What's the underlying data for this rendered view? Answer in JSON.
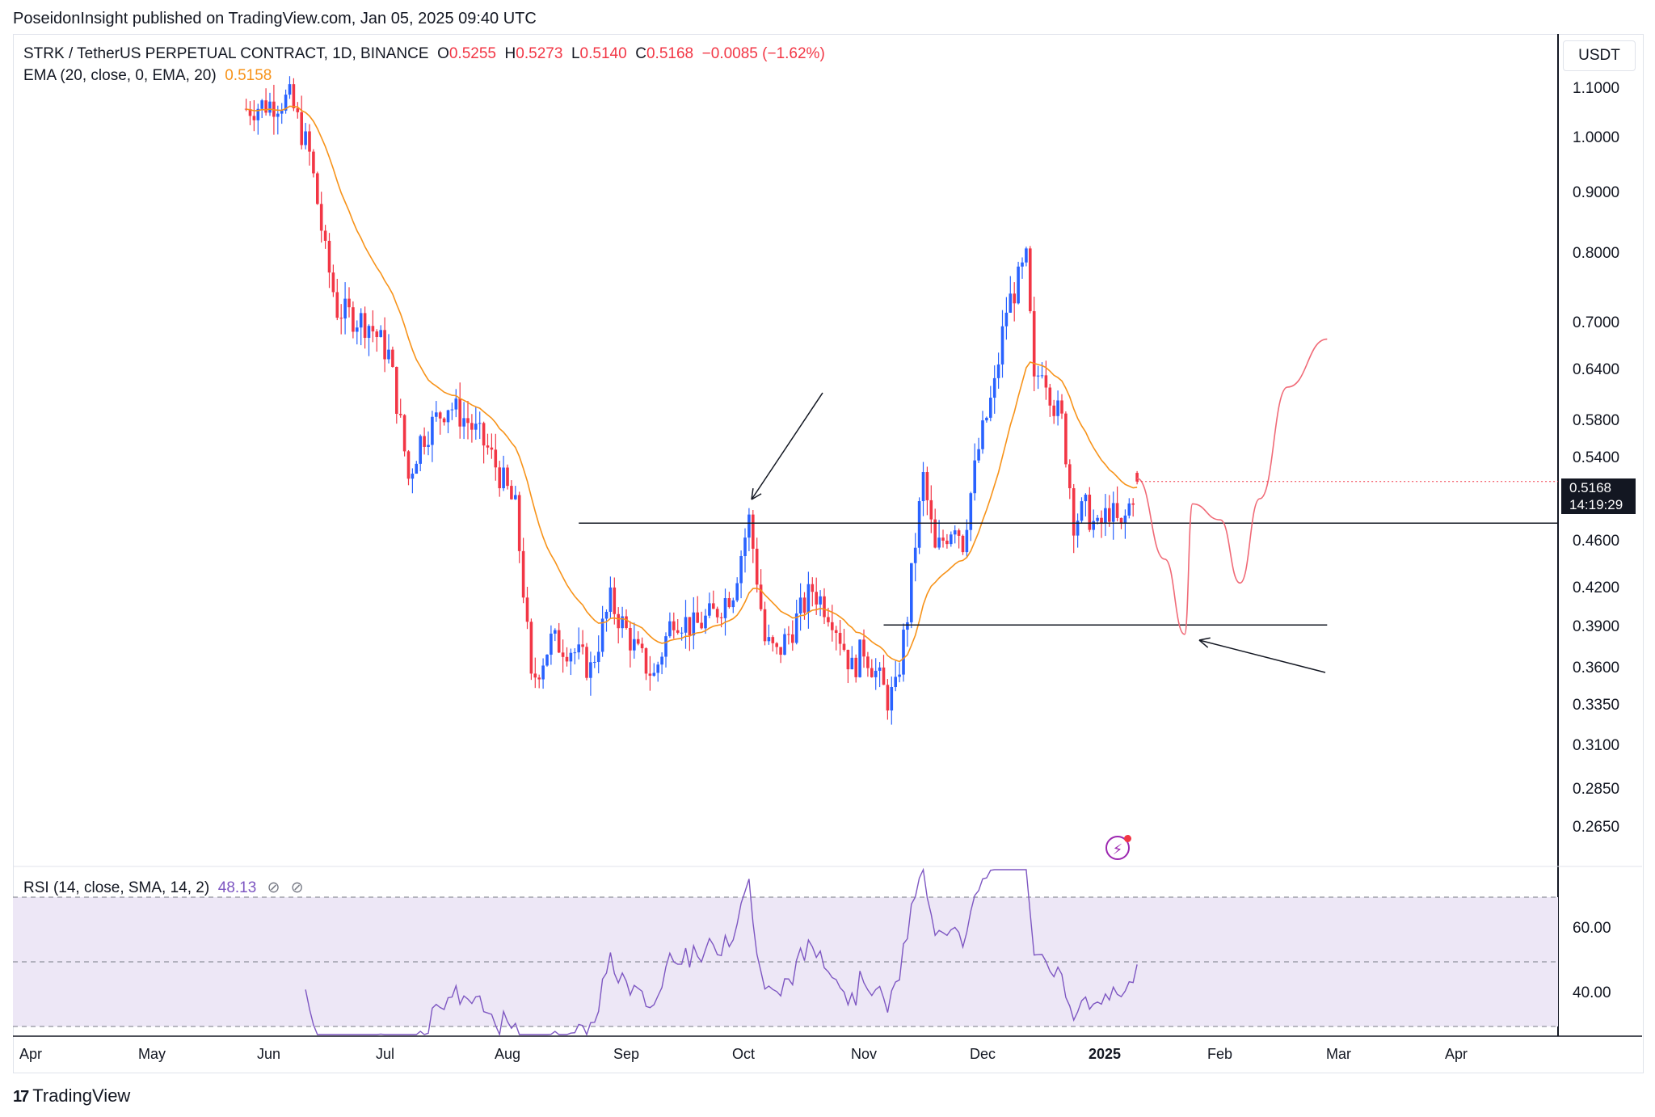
{
  "header": {
    "published": "PoseidonInsight published on TradingView.com, Jan 05, 2025 09:40 UTC"
  },
  "legend": {
    "symbol": "STRK / TetherUS PERPETUAL CONTRACT, 1D, BINANCE",
    "o_label": "O",
    "o_value": "0.5255",
    "h_label": "H",
    "h_value": "0.5273",
    "l_label": "L",
    "l_value": "0.5140",
    "c_label": "C",
    "c_value": "0.5168",
    "change": "−0.0085 (−1.62%)",
    "ema_label": "EMA (20, close, 0, EMA, 20)",
    "ema_value": "0.5158",
    "rsi_label": "RSI (14, close, SMA, 14, 2)",
    "rsi_value": "48.13",
    "hide_icon": "eye-off-icon"
  },
  "price_scale": {
    "currency": "USDT",
    "ticks": [
      "1.1000",
      "1.0000",
      "0.9000",
      "0.8000",
      "0.7000",
      "0.6400",
      "0.5800",
      "0.5400",
      "0.4600",
      "0.4200",
      "0.3900",
      "0.3600",
      "0.3350",
      "0.3100",
      "0.2850",
      "0.2650"
    ],
    "last_price": "0.5168",
    "countdown": "14:19:29"
  },
  "rsi_scale": {
    "ticks": [
      "60.00",
      "40.00"
    ]
  },
  "time_scale": {
    "ticks": [
      {
        "label": "Apr",
        "bold": false
      },
      {
        "label": "May",
        "bold": false
      },
      {
        "label": "Jun",
        "bold": false
      },
      {
        "label": "Jul",
        "bold": false
      },
      {
        "label": "Aug",
        "bold": false
      },
      {
        "label": "Sep",
        "bold": false
      },
      {
        "label": "Oct",
        "bold": false
      },
      {
        "label": "Nov",
        "bold": false
      },
      {
        "label": "Dec",
        "bold": false
      },
      {
        "label": "2025",
        "bold": true
      },
      {
        "label": "Feb",
        "bold": false
      },
      {
        "label": "Mar",
        "bold": false
      },
      {
        "label": "Apr",
        "bold": false
      }
    ]
  },
  "footer": {
    "brand": "TradingView",
    "logo_icon": "tradingview-logo-icon"
  },
  "colors": {
    "up": "#2962ff",
    "down": "#f23645",
    "ema": "#f7931a",
    "rsi": "#7e57c2",
    "rsi_band": "#ede7f6",
    "projection": "#f06a77",
    "drawing": "#131722"
  },
  "chart_data": {
    "type": "candlestick",
    "symbol": "STRK/USDT perpetual",
    "timeframe": "1D",
    "scale": "log",
    "anchors": [
      {
        "date": "2024-05-25",
        "close": 1.06
      },
      {
        "date": "2024-06-05",
        "close": 1.08
      },
      {
        "date": "2024-06-10",
        "close": 0.97
      },
      {
        "date": "2024-06-14",
        "close": 0.8
      },
      {
        "date": "2024-06-17",
        "close": 0.72
      },
      {
        "date": "2024-06-25",
        "close": 0.7
      },
      {
        "date": "2024-06-30",
        "close": 0.66
      },
      {
        "date": "2024-07-05",
        "close": 0.52
      },
      {
        "date": "2024-07-08",
        "close": 0.56
      },
      {
        "date": "2024-07-15",
        "close": 0.6
      },
      {
        "date": "2024-07-20",
        "close": 0.58
      },
      {
        "date": "2024-07-25",
        "close": 0.55
      },
      {
        "date": "2024-08-01",
        "close": 0.49
      },
      {
        "date": "2024-08-05",
        "close": 0.35
      },
      {
        "date": "2024-08-10",
        "close": 0.38
      },
      {
        "date": "2024-08-15",
        "close": 0.375
      },
      {
        "date": "2024-08-20",
        "close": 0.36
      },
      {
        "date": "2024-08-25",
        "close": 0.41
      },
      {
        "date": "2024-09-01",
        "close": 0.37
      },
      {
        "date": "2024-09-05",
        "close": 0.355
      },
      {
        "date": "2024-09-10",
        "close": 0.4
      },
      {
        "date": "2024-09-15",
        "close": 0.39
      },
      {
        "date": "2024-09-20",
        "close": 0.4
      },
      {
        "date": "2024-09-25",
        "close": 0.42
      },
      {
        "date": "2024-09-29",
        "close": 0.48
      },
      {
        "date": "2024-10-03",
        "close": 0.38
      },
      {
        "date": "2024-10-06",
        "close": 0.37
      },
      {
        "date": "2024-10-10",
        "close": 0.39
      },
      {
        "date": "2024-10-15",
        "close": 0.42
      },
      {
        "date": "2024-10-20",
        "close": 0.4
      },
      {
        "date": "2024-10-25",
        "close": 0.36
      },
      {
        "date": "2024-10-28",
        "close": 0.375
      },
      {
        "date": "2024-11-03",
        "close": 0.34
      },
      {
        "date": "2024-11-05",
        "close": 0.345
      },
      {
        "date": "2024-11-08",
        "close": 0.4
      },
      {
        "date": "2024-11-12",
        "close": 0.52
      },
      {
        "date": "2024-11-15",
        "close": 0.45
      },
      {
        "date": "2024-11-20",
        "close": 0.48
      },
      {
        "date": "2024-11-22",
        "close": 0.46
      },
      {
        "date": "2024-11-26",
        "close": 0.55
      },
      {
        "date": "2024-11-30",
        "close": 0.62
      },
      {
        "date": "2024-12-03",
        "close": 0.72
      },
      {
        "date": "2024-12-06",
        "close": 0.76
      },
      {
        "date": "2024-12-08",
        "close": 0.79
      },
      {
        "date": "2024-12-10",
        "close": 0.62
      },
      {
        "date": "2024-12-12",
        "close": 0.65
      },
      {
        "date": "2024-12-15",
        "close": 0.6
      },
      {
        "date": "2024-12-17",
        "close": 0.58
      },
      {
        "date": "2024-12-20",
        "close": 0.48
      },
      {
        "date": "2024-12-23",
        "close": 0.49
      },
      {
        "date": "2024-12-26",
        "close": 0.47
      },
      {
        "date": "2024-12-29",
        "close": 0.49
      },
      {
        "date": "2025-01-01",
        "close": 0.47
      },
      {
        "date": "2025-01-05",
        "close": 0.5168
      }
    ],
    "last_bar": {
      "open": 0.5255,
      "high": 0.5273,
      "low": 0.514,
      "close": 0.5168,
      "change": -0.0085,
      "change_pct": -1.62
    },
    "ema_20_last": 0.5158,
    "rsi_14_last": 48.13,
    "rsi_bands": [
      30,
      50,
      70
    ],
    "horizontal_levels": [
      0.477,
      0.392
    ],
    "projection": [
      {
        "date": "2025-01-05",
        "value": 0.52
      },
      {
        "date": "2025-01-12",
        "value": 0.445
      },
      {
        "date": "2025-01-17",
        "value": 0.385
      },
      {
        "date": "2025-01-19",
        "value": 0.495
      },
      {
        "date": "2025-01-26",
        "value": 0.48
      },
      {
        "date": "2025-01-31",
        "value": 0.425
      },
      {
        "date": "2025-02-05",
        "value": 0.5
      },
      {
        "date": "2025-02-12",
        "value": 0.62
      },
      {
        "date": "2025-02-22",
        "value": 0.68
      }
    ]
  }
}
